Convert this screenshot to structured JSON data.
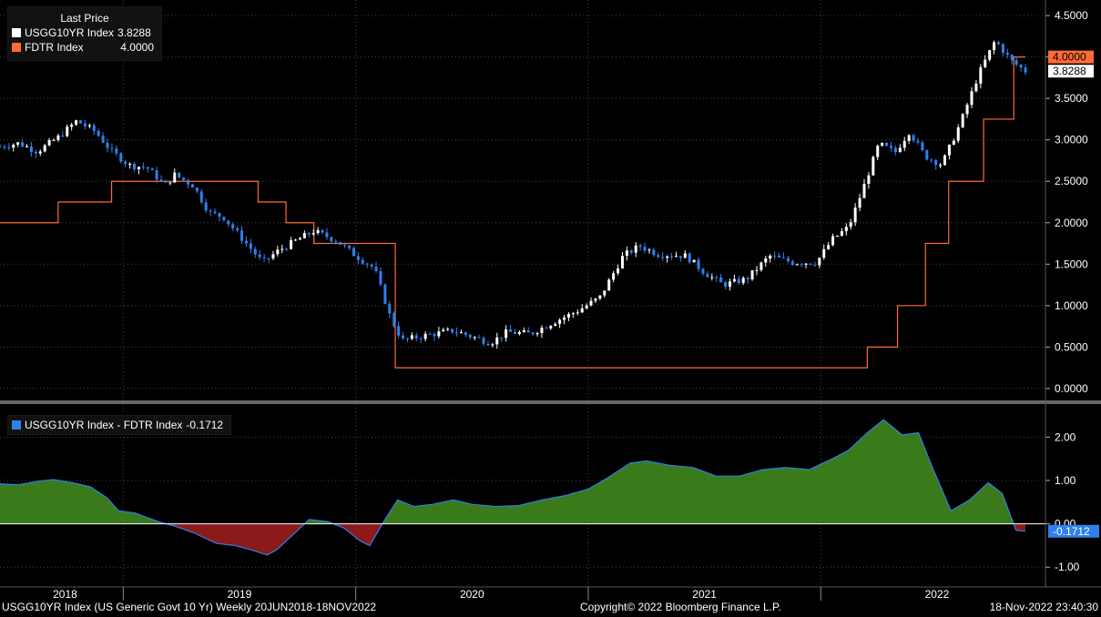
{
  "legend_top": {
    "title": "Last Price",
    "items": [
      {
        "name": "USGG10YR Index",
        "value": "3.8288",
        "color": "#ffffff"
      },
      {
        "name": "FDTR Index",
        "value": "4.0000",
        "color": "#ff6b35"
      }
    ]
  },
  "legend_bottom": {
    "name": "USGG10YR Index - FDTR Index",
    "value": "-0.1712",
    "color": "#2f80ed"
  },
  "footer": {
    "left": "USGG10YR Index (US Generic Govt 10 Yr)  Weekly 20JUN2018-18NOV2022",
    "middle": "Copyright© 2022 Bloomberg Finance L.P.",
    "right": "18-Nov-2022 23:40:30"
  },
  "chart_data": [
    {
      "type": "line",
      "x_range": [
        2018.47,
        2022.88
      ],
      "ylim": [
        -0.1,
        4.6
      ],
      "yticks": [
        "4.5000",
        "4.0000",
        "3.5000",
        "3.0000",
        "2.5000",
        "2.0000",
        "1.5000",
        "1.0000",
        "0.5000",
        "0.0000"
      ],
      "ytick_values": [
        4.5,
        4.0,
        3.5,
        3.0,
        2.5,
        2.0,
        1.5,
        1.0,
        0.5,
        0.0
      ],
      "last_labels": [
        {
          "value": 4.0,
          "label": "4.0000",
          "color": "#ff6b35"
        },
        {
          "value": 3.8288,
          "label": "3.8288",
          "color": "#ffffff"
        }
      ],
      "series": [
        {
          "name": "USGG10YR Index",
          "style": "candlestick",
          "up_color": "#ffffff",
          "down_color": "#2f80ed",
          "points": [
            [
              2018.47,
              2.92
            ],
            [
              2018.55,
              2.96
            ],
            [
              2018.63,
              2.86
            ],
            [
              2018.72,
              3.03
            ],
            [
              2018.8,
              3.23
            ],
            [
              2018.88,
              3.1
            ],
            [
              2018.95,
              2.86
            ],
            [
              2019.03,
              2.69
            ],
            [
              2019.1,
              2.67
            ],
            [
              2019.18,
              2.45
            ],
            [
              2019.22,
              2.58
            ],
            [
              2019.3,
              2.45
            ],
            [
              2019.37,
              2.12
            ],
            [
              2019.43,
              2.07
            ],
            [
              2019.52,
              1.78
            ],
            [
              2019.6,
              1.52
            ],
            [
              2019.66,
              1.65
            ],
            [
              2019.74,
              1.78
            ],
            [
              2019.82,
              1.9
            ],
            [
              2019.92,
              1.78
            ],
            [
              2020.0,
              1.6
            ],
            [
              2020.08,
              1.45
            ],
            [
              2020.15,
              0.85
            ],
            [
              2020.2,
              0.58
            ],
            [
              2020.3,
              0.64
            ],
            [
              2020.42,
              0.7
            ],
            [
              2020.58,
              0.55
            ],
            [
              2020.65,
              0.68
            ],
            [
              2020.75,
              0.66
            ],
            [
              2020.85,
              0.8
            ],
            [
              2020.95,
              0.93
            ],
            [
              2021.05,
              1.1
            ],
            [
              2021.15,
              1.6
            ],
            [
              2021.22,
              1.72
            ],
            [
              2021.3,
              1.62
            ],
            [
              2021.42,
              1.6
            ],
            [
              2021.5,
              1.4
            ],
            [
              2021.58,
              1.25
            ],
            [
              2021.68,
              1.32
            ],
            [
              2021.78,
              1.6
            ],
            [
              2021.88,
              1.52
            ],
            [
              2021.98,
              1.52
            ],
            [
              2022.05,
              1.8
            ],
            [
              2022.12,
              1.95
            ],
            [
              2022.18,
              2.4
            ],
            [
              2022.25,
              2.95
            ],
            [
              2022.32,
              2.85
            ],
            [
              2022.38,
              3.1
            ],
            [
              2022.45,
              2.8
            ],
            [
              2022.52,
              2.7
            ],
            [
              2022.6,
              3.2
            ],
            [
              2022.68,
              3.8
            ],
            [
              2022.75,
              4.2
            ],
            [
              2022.82,
              3.95
            ],
            [
              2022.88,
              3.83
            ]
          ]
        },
        {
          "name": "FDTR Index",
          "style": "step",
          "color": "#ff6b35",
          "points": [
            [
              2018.47,
              2.0
            ],
            [
              2018.72,
              2.25
            ],
            [
              2018.95,
              2.5
            ],
            [
              2019.42,
              2.5
            ],
            [
              2019.58,
              2.25
            ],
            [
              2019.7,
              2.0
            ],
            [
              2019.82,
              1.75
            ],
            [
              2020.17,
              0.25
            ],
            [
              2022.2,
              0.5
            ],
            [
              2022.33,
              1.0
            ],
            [
              2022.45,
              1.75
            ],
            [
              2022.55,
              2.5
            ],
            [
              2022.7,
              3.25
            ],
            [
              2022.83,
              4.0
            ],
            [
              2022.88,
              4.0
            ]
          ]
        }
      ]
    },
    {
      "type": "area",
      "x_range": [
        2018.47,
        2022.88
      ],
      "ylim": [
        -1.1,
        2.7
      ],
      "yticks": [
        "2.00",
        "1.00",
        "0.00",
        "-1.00"
      ],
      "ytick_values": [
        2.0,
        1.0,
        0.0,
        -1.0
      ],
      "last_label": {
        "value": -0.1712,
        "label": "-0.1712",
        "color": "#2f80ed"
      },
      "pos_color": "#3a7a1a",
      "neg_color": "#8b1a1a",
      "series": [
        {
          "name": "USGG10YR Index - FDTR Index",
          "points": [
            [
              2018.47,
              0.92
            ],
            [
              2018.55,
              0.9
            ],
            [
              2018.63,
              0.98
            ],
            [
              2018.7,
              1.02
            ],
            [
              2018.78,
              0.95
            ],
            [
              2018.86,
              0.85
            ],
            [
              2018.93,
              0.6
            ],
            [
              2018.98,
              0.3
            ],
            [
              2019.05,
              0.25
            ],
            [
              2019.15,
              0.05
            ],
            [
              2019.22,
              -0.05
            ],
            [
              2019.3,
              -0.2
            ],
            [
              2019.4,
              -0.45
            ],
            [
              2019.48,
              -0.5
            ],
            [
              2019.55,
              -0.6
            ],
            [
              2019.62,
              -0.72
            ],
            [
              2019.66,
              -0.6
            ],
            [
              2019.72,
              -0.3
            ],
            [
              2019.8,
              0.1
            ],
            [
              2019.88,
              0.05
            ],
            [
              2019.95,
              -0.1
            ],
            [
              2020.02,
              -0.4
            ],
            [
              2020.06,
              -0.5
            ],
            [
              2020.12,
              0.05
            ],
            [
              2020.18,
              0.55
            ],
            [
              2020.25,
              0.4
            ],
            [
              2020.33,
              0.45
            ],
            [
              2020.42,
              0.55
            ],
            [
              2020.5,
              0.45
            ],
            [
              2020.6,
              0.4
            ],
            [
              2020.7,
              0.42
            ],
            [
              2020.8,
              0.55
            ],
            [
              2020.9,
              0.65
            ],
            [
              2021.0,
              0.8
            ],
            [
              2021.08,
              1.05
            ],
            [
              2021.18,
              1.4
            ],
            [
              2021.25,
              1.45
            ],
            [
              2021.35,
              1.35
            ],
            [
              2021.45,
              1.3
            ],
            [
              2021.55,
              1.1
            ],
            [
              2021.65,
              1.1
            ],
            [
              2021.75,
              1.25
            ],
            [
              2021.85,
              1.3
            ],
            [
              2021.95,
              1.25
            ],
            [
              2022.05,
              1.5
            ],
            [
              2022.12,
              1.7
            ],
            [
              2022.2,
              2.1
            ],
            [
              2022.27,
              2.4
            ],
            [
              2022.35,
              2.05
            ],
            [
              2022.42,
              2.1
            ],
            [
              2022.48,
              1.3
            ],
            [
              2022.56,
              0.3
            ],
            [
              2022.64,
              0.55
            ],
            [
              2022.72,
              0.95
            ],
            [
              2022.78,
              0.7
            ],
            [
              2022.84,
              -0.15
            ],
            [
              2022.88,
              -0.17
            ]
          ]
        }
      ]
    }
  ],
  "x_axis": {
    "labels": [
      "2018",
      "2019",
      "2020",
      "2021",
      "2022"
    ],
    "label_values": [
      2018.75,
      2019.5,
      2020.5,
      2021.5,
      2022.5
    ],
    "year_boundaries": [
      2019.0,
      2020.0,
      2021.0,
      2022.0
    ]
  }
}
